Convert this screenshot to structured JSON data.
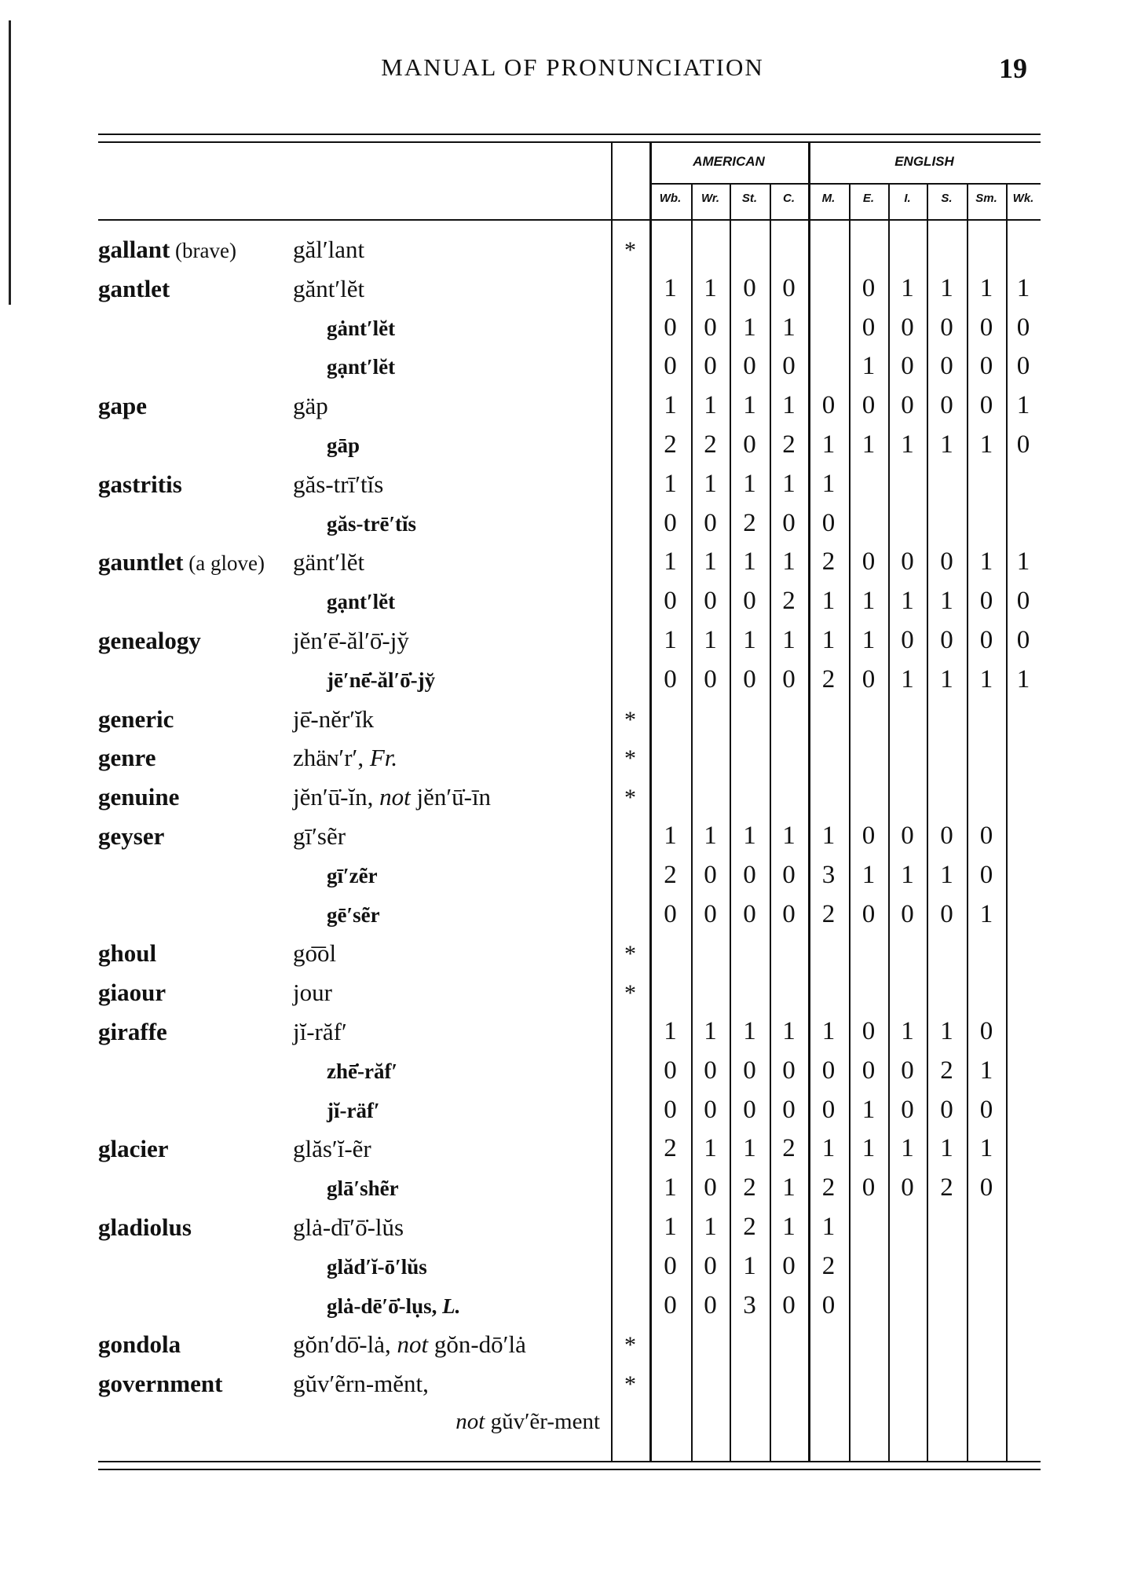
{
  "page": {
    "running_head": "MANUAL OF PRONUNCIATION",
    "page_number": "19"
  },
  "table": {
    "groups": [
      {
        "label": "AMERICAN",
        "columns": [
          "Wb.",
          "Wr.",
          "St.",
          "C."
        ]
      },
      {
        "label": "ENGLISH",
        "columns": [
          "M.",
          "E.",
          "I.",
          "S.",
          "Sm.",
          "Wk."
        ]
      }
    ],
    "star_symbol": "*",
    "rows": [
      {
        "word": "gallant",
        "note": " (brave)",
        "pron": [
          {
            "t": "găl′lant"
          }
        ],
        "star": true,
        "values": []
      },
      {
        "word": "gantlet",
        "pron": [
          {
            "t": "gănt′lĕt"
          }
        ],
        "values": [
          1,
          1,
          0,
          0,
          null,
          0,
          1,
          1,
          1,
          1
        ]
      },
      {
        "indent": true,
        "pron": [
          {
            "t": "gȧnt′lĕt"
          }
        ],
        "values": [
          0,
          0,
          1,
          1,
          null,
          0,
          0,
          0,
          0,
          0
        ]
      },
      {
        "indent": true,
        "pron": [
          {
            "t": "gạnt′lĕt"
          }
        ],
        "values": [
          0,
          0,
          0,
          0,
          null,
          1,
          0,
          0,
          0,
          0
        ]
      },
      {
        "word": "gape",
        "pron": [
          {
            "t": "gäp"
          }
        ],
        "values": [
          1,
          1,
          1,
          1,
          0,
          0,
          0,
          0,
          0,
          1
        ]
      },
      {
        "indent": true,
        "pron": [
          {
            "t": "gāp"
          }
        ],
        "values": [
          2,
          2,
          0,
          2,
          1,
          1,
          1,
          1,
          1,
          0
        ]
      },
      {
        "word": "gastritis",
        "pron": [
          {
            "t": "găs-trī′tĭs"
          }
        ],
        "values": [
          1,
          1,
          1,
          1,
          1
        ]
      },
      {
        "indent": true,
        "pron": [
          {
            "t": "găs-trē′tĭs"
          }
        ],
        "values": [
          0,
          0,
          2,
          0,
          0
        ]
      },
      {
        "word": "gauntlet",
        "note": " (a glove)",
        "pron": [
          {
            "t": "gänt′lĕt"
          }
        ],
        "values": [
          1,
          1,
          1,
          1,
          2,
          0,
          0,
          0,
          1,
          1
        ]
      },
      {
        "indent": true,
        "pron": [
          {
            "t": "gạnt′lĕt"
          }
        ],
        "values": [
          0,
          0,
          0,
          2,
          1,
          1,
          1,
          1,
          0,
          0
        ]
      },
      {
        "word": "genealogy",
        "pron": [
          {
            "t": "jĕn′ē̇-ăl′ō̇-jy̆"
          }
        ],
        "values": [
          1,
          1,
          1,
          1,
          1,
          1,
          0,
          0,
          0,
          0
        ]
      },
      {
        "indent": true,
        "pron": [
          {
            "t": "jē′nē̇-ăl′ō̇-jy̆"
          }
        ],
        "values": [
          0,
          0,
          0,
          0,
          2,
          0,
          1,
          1,
          1,
          1
        ]
      },
      {
        "word": "generic",
        "pron": [
          {
            "t": "jē̇-nĕr′ĭk"
          }
        ],
        "star": true,
        "values": []
      },
      {
        "word": "genre",
        "pron": [
          {
            "t": "zhäɴ′r′, "
          },
          {
            "t": "Fr.",
            "i": true
          }
        ],
        "star": true,
        "values": []
      },
      {
        "word": "genuine",
        "pron": [
          {
            "t": "jĕn′ū̇-ĭn, "
          },
          {
            "t": "not",
            "i": true
          },
          {
            "t": " jĕn′ū̇-īn"
          }
        ],
        "star": true,
        "values": []
      },
      {
        "word": "geyser",
        "pron": [
          {
            "t": "gī′sẽr"
          }
        ],
        "values": [
          1,
          1,
          1,
          1,
          1,
          0,
          0,
          0,
          0
        ]
      },
      {
        "indent": true,
        "pron": [
          {
            "t": "gī′zẽr"
          }
        ],
        "values": [
          2,
          0,
          0,
          0,
          3,
          1,
          1,
          1,
          0
        ]
      },
      {
        "indent": true,
        "pron": [
          {
            "t": "gē′sẽr"
          }
        ],
        "values": [
          0,
          0,
          0,
          0,
          2,
          0,
          0,
          0,
          1
        ]
      },
      {
        "word": "ghoul",
        "pron": [
          {
            "t": "go͞ol"
          }
        ],
        "star": true,
        "values": []
      },
      {
        "word": "giaour",
        "pron": [
          {
            "t": "jour"
          }
        ],
        "star": true,
        "values": []
      },
      {
        "word": "giraffe",
        "pron": [
          {
            "t": "jĭ-răf′"
          }
        ],
        "values": [
          1,
          1,
          1,
          1,
          1,
          0,
          1,
          1,
          0
        ]
      },
      {
        "indent": true,
        "pron": [
          {
            "t": "zhē̇-răf′"
          }
        ],
        "values": [
          0,
          0,
          0,
          0,
          0,
          0,
          0,
          2,
          1
        ]
      },
      {
        "indent": true,
        "pron": [
          {
            "t": "jĭ-räf′"
          }
        ],
        "values": [
          0,
          0,
          0,
          0,
          0,
          1,
          0,
          0,
          0
        ]
      },
      {
        "word": "glacier",
        "pron": [
          {
            "t": "glăs′ĭ-ẽr"
          }
        ],
        "values": [
          2,
          1,
          1,
          2,
          1,
          1,
          1,
          1,
          1
        ]
      },
      {
        "indent": true,
        "pron": [
          {
            "t": "glā′shẽr"
          }
        ],
        "values": [
          1,
          0,
          2,
          1,
          2,
          0,
          0,
          2,
          0
        ]
      },
      {
        "word": "gladiolus",
        "pron": [
          {
            "t": "glȧ-dī′ō̇-lŭs"
          }
        ],
        "values": [
          1,
          1,
          2,
          1,
          1
        ]
      },
      {
        "indent": true,
        "pron": [
          {
            "t": "glăd′ĭ-ō′lŭs"
          }
        ],
        "values": [
          0,
          0,
          1,
          0,
          2
        ]
      },
      {
        "indent": true,
        "pron": [
          {
            "t": "glȧ-dē′ō̇-lụs, "
          },
          {
            "t": "L.",
            "i": true
          }
        ],
        "values": [
          0,
          0,
          3,
          0,
          0
        ]
      },
      {
        "word": "gondola",
        "pron": [
          {
            "t": "gŏn′dō̇-lȧ, "
          },
          {
            "t": "not",
            "i": true
          },
          {
            "t": " gŏn-dō′lȧ"
          }
        ],
        "star": true,
        "values": []
      },
      {
        "word": "government",
        "pron": [
          {
            "t": "gŭv′ẽrn-mĕnt,"
          }
        ],
        "star": true,
        "values": []
      },
      {
        "right": true,
        "pron": [
          {
            "t": "not",
            "i": true
          },
          {
            "t": " gŭv′ẽr-ment"
          }
        ],
        "values": []
      }
    ]
  }
}
